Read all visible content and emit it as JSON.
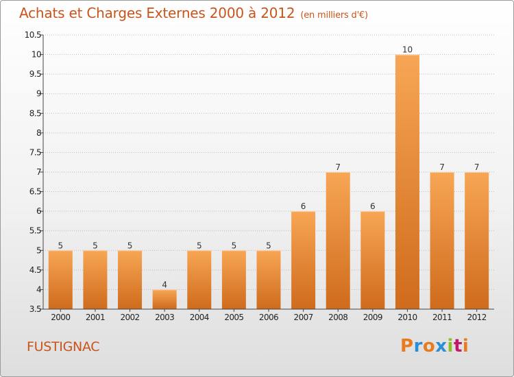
{
  "header": {
    "title": "Achats et Charges Externes 2000 à 2012",
    "subtitle": "(en milliers d'€)"
  },
  "footer": {
    "location": "FUSTIGNAC",
    "logo_text": "Proxiti",
    "logo_colors": [
      "#e87b1e",
      "#2a8fd6",
      "#e87b1e",
      "#2a8fd6",
      "#8cbf26",
      "#c2186b",
      "#e87b1e"
    ]
  },
  "colors": {
    "bar_light": "#f7a655",
    "bar_dark": "#cf6b1c",
    "title": "#c8541a",
    "grid": "#bbbbbb"
  },
  "chart_data": {
    "type": "bar",
    "title": "Achats et Charges Externes 2000 à 2012",
    "subtitle": "(en milliers d'€)",
    "categories": [
      "2000",
      "2001",
      "2002",
      "2003",
      "2004",
      "2005",
      "2006",
      "2007",
      "2008",
      "2009",
      "2010",
      "2011",
      "2012"
    ],
    "values": [
      5,
      5,
      5,
      4,
      5,
      5,
      5,
      6,
      7,
      6,
      10,
      7,
      7
    ],
    "ylim": [
      3.5,
      10.5
    ],
    "yticks": [
      "3.5",
      "4",
      "4.5",
      "5",
      "5.5",
      "6",
      "6.5",
      "7",
      "7.5",
      "8",
      "8.5",
      "9",
      "9.5",
      "10",
      "10.5"
    ],
    "grid": "horizontal-dotted",
    "xlabel": "",
    "ylabel": ""
  }
}
